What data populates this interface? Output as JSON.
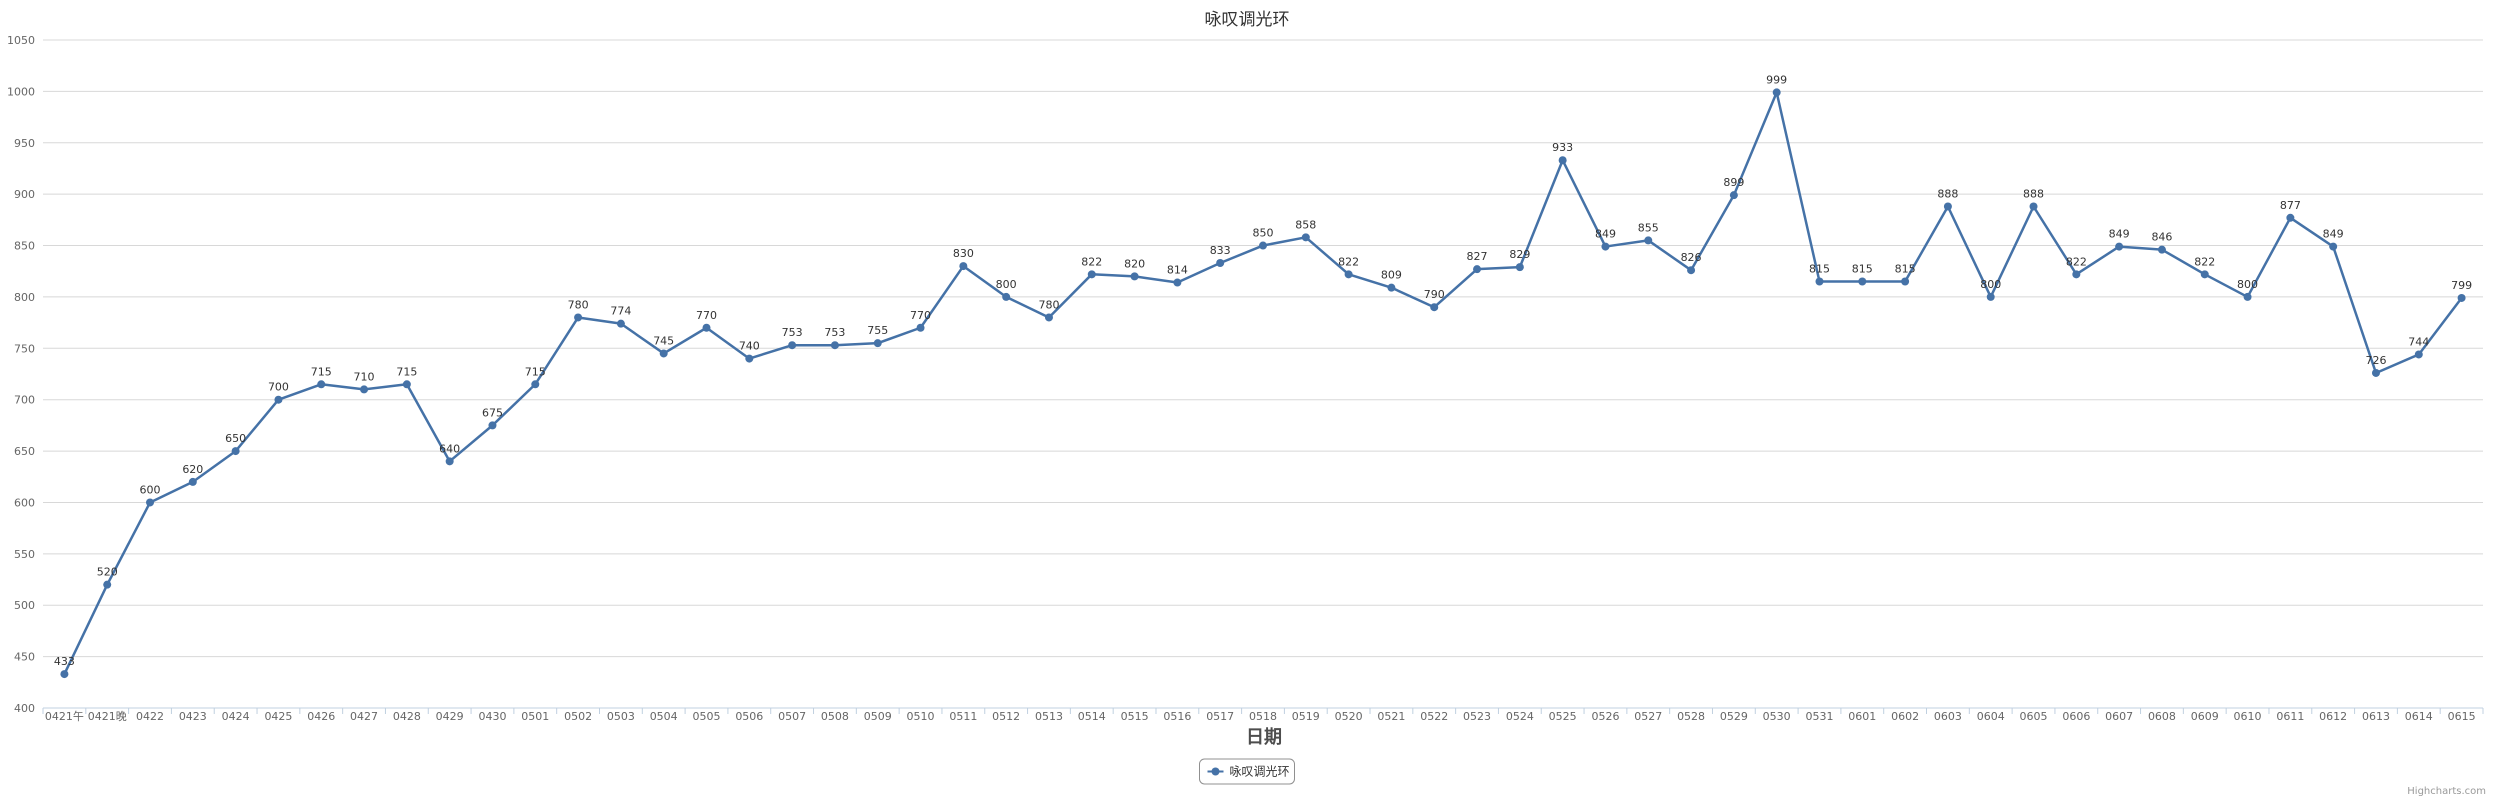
{
  "chart_data": {
    "type": "line",
    "title": "咏叹调光环",
    "xlabel": "日期",
    "ylabel": "",
    "ylim": [
      400,
      1050
    ],
    "ytick_step": 50,
    "grid": true,
    "legend_position": "bottom-center",
    "categories": [
      "0421午",
      "0421晚",
      "0422",
      "0423",
      "0424",
      "0425",
      "0426",
      "0427",
      "0428",
      "0429",
      "0430",
      "0501",
      "0502",
      "0503",
      "0504",
      "0505",
      "0506",
      "0507",
      "0508",
      "0509",
      "0510",
      "0511",
      "0512",
      "0513",
      "0514",
      "0515",
      "0516",
      "0517",
      "0518",
      "0519",
      "0520",
      "0521",
      "0522",
      "0523",
      "0524",
      "0525",
      "0526",
      "0527",
      "0528",
      "0529",
      "0530",
      "0531",
      "0601",
      "0602",
      "0603",
      "0604",
      "0605",
      "0606",
      "0607",
      "0608",
      "0609",
      "0610",
      "0611",
      "0612",
      "0613",
      "0614",
      "0615"
    ],
    "series": [
      {
        "name": "咏叹调光环",
        "color": "#4572a7",
        "values": [
          433,
          520,
          600,
          620,
          650,
          700,
          715,
          710,
          715,
          640,
          675,
          715,
          780,
          774,
          745,
          770,
          740,
          753,
          753,
          755,
          770,
          830,
          800,
          780,
          822,
          820,
          814,
          833,
          850,
          858,
          822,
          809,
          790,
          827,
          829,
          933,
          849,
          855,
          826,
          899,
          999,
          815,
          815,
          815,
          888,
          800,
          888,
          822,
          849,
          846,
          822,
          800,
          877,
          849,
          726,
          744,
          799
        ]
      }
    ]
  },
  "credits": "Highcharts.com"
}
